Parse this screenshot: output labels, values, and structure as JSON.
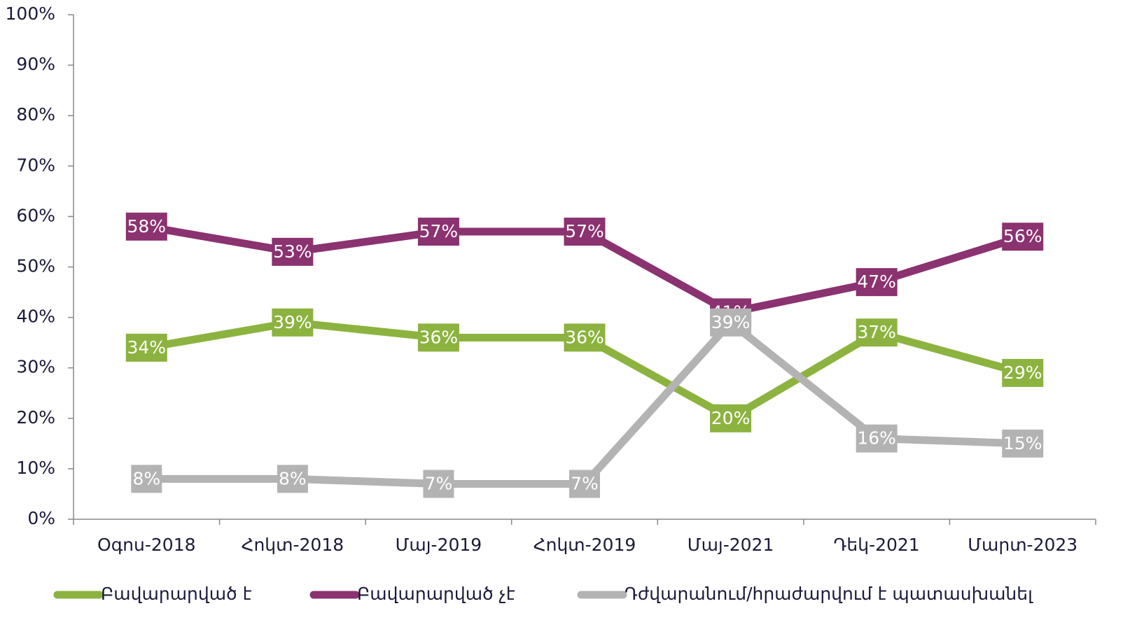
{
  "chart_data": {
    "type": "line",
    "categories": [
      "Օգոս-2018",
      "Հոկտ-2018",
      "Մայ-2019",
      "Հոկտ-2019",
      "Մայ-2021",
      "Դեկ-2021",
      "Մարտ-2023"
    ],
    "series": [
      {
        "name": "Բավարարված է",
        "color": "#8cb33f",
        "values": [
          34,
          39,
          36,
          36,
          20,
          37,
          29
        ],
        "value_labels": [
          "34%",
          "39%",
          "36%",
          "36%",
          "20%",
          "37%",
          "29%"
        ]
      },
      {
        "name": "Բավարարված չէ",
        "color": "#8b3270",
        "values": [
          58,
          53,
          57,
          57,
          41,
          47,
          56
        ],
        "value_labels": [
          "58%",
          "53%",
          "57%",
          "57%",
          "41%",
          "47%",
          "56%"
        ]
      },
      {
        "name": "Դժվարանում/հրաժարվում է պատասխանել",
        "color": "#b3b3b3",
        "values": [
          8,
          8,
          7,
          7,
          39,
          16,
          15
        ],
        "value_labels": [
          "8%",
          "8%",
          "7%",
          "7%",
          "39%",
          "16%",
          "15%"
        ]
      }
    ],
    "ylim": [
      0,
      100
    ],
    "yticks": [
      {
        "value": 0,
        "label": "0%"
      },
      {
        "value": 10,
        "label": "10%"
      },
      {
        "value": 20,
        "label": "20%"
      },
      {
        "value": 30,
        "label": "30%"
      },
      {
        "value": 40,
        "label": "40%"
      },
      {
        "value": 50,
        "label": "50%"
      },
      {
        "value": 60,
        "label": "60%"
      },
      {
        "value": 70,
        "label": "70%"
      },
      {
        "value": 80,
        "label": "80%"
      },
      {
        "value": 90,
        "label": "90%"
      },
      {
        "value": 100,
        "label": "100%"
      }
    ],
    "grid": false,
    "legend": "bottom"
  }
}
